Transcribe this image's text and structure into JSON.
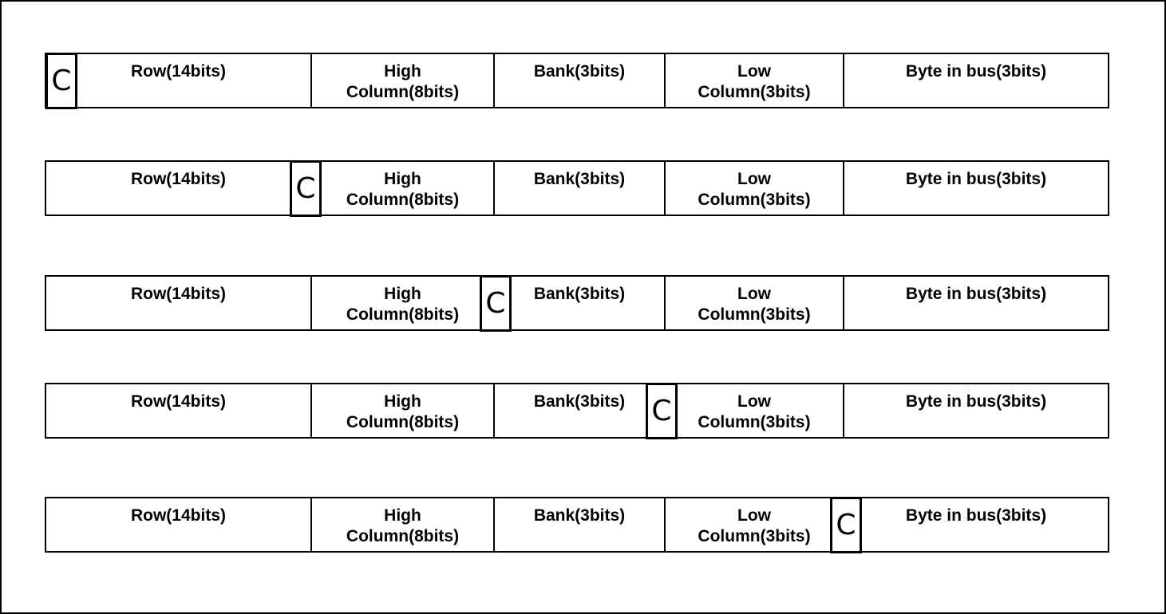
{
  "fields": {
    "row": "Row(14bits)",
    "high_column": "High\nColumn(8bits)",
    "bank": "Bank(3bits)",
    "low_column": "Low\nColumn(3bits)",
    "byte_in_bus": "Byte in bus(3bits)"
  },
  "marker_label": "C",
  "layouts": [
    {
      "marker_before": "row"
    },
    {
      "marker_before": "high_column"
    },
    {
      "marker_before": "bank"
    },
    {
      "marker_before": "low_column"
    },
    {
      "marker_before": "byte_in_bus"
    }
  ]
}
